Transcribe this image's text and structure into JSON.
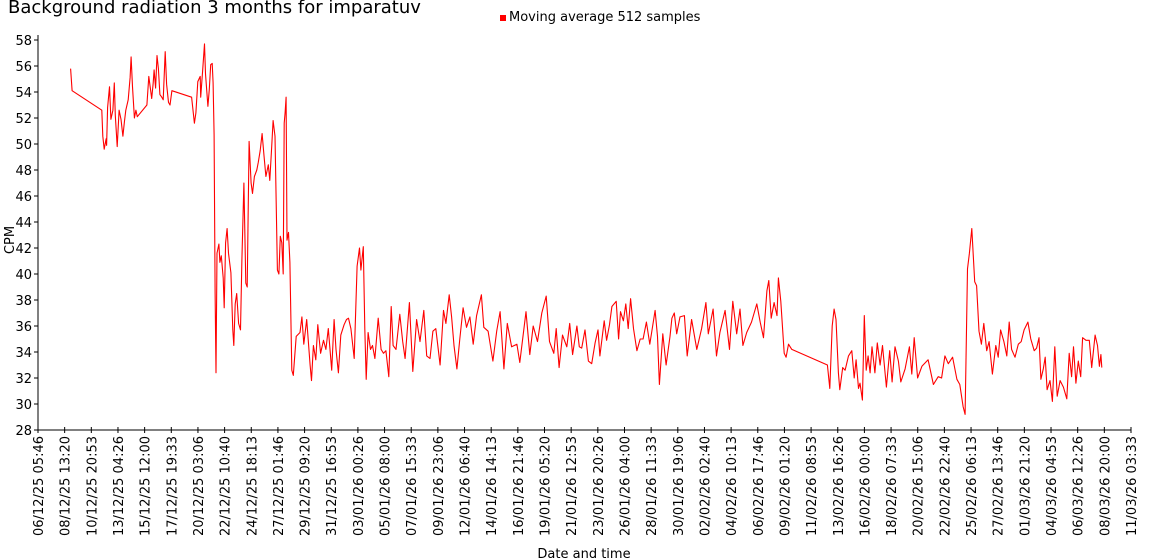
{
  "chart_data": {
    "type": "line",
    "title": "Background radiation 3 months for imparatuv",
    "xlabel": "Date and time",
    "ylabel": "CPM",
    "ylim": [
      28,
      58
    ],
    "y_ticks": [
      28,
      30,
      32,
      34,
      36,
      38,
      40,
      42,
      44,
      46,
      48,
      50,
      52,
      54,
      56,
      58
    ],
    "x_unit": "hours since 06/12/25 05:46",
    "xlim": [
      0,
      2277.8
    ],
    "x_tick_interval_hours": 55.556,
    "x_tick_labels": [
      "06/12/25 05:46",
      "08/12/25 13:20",
      "10/12/25 20:53",
      "13/12/25 04:26",
      "15/12/25 12:00",
      "17/12/25 19:33",
      "20/12/25 03:06",
      "22/12/25 10:40",
      "24/12/25 18:13",
      "27/12/25 01:46",
      "29/12/25 09:20",
      "31/12/25 16:53",
      "03/01/26 00:26",
      "05/01/26 08:00",
      "07/01/26 15:33",
      "09/01/26 23:06",
      "12/01/26 06:40",
      "14/01/26 14:13",
      "16/01/26 21:46",
      "19/01/26 05:20",
      "21/01/26 12:53",
      "23/01/26 20:26",
      "26/01/26 04:00",
      "28/01/26 11:33",
      "30/01/26 19:06",
      "02/02/26 02:40",
      "04/02/26 10:13",
      "06/02/26 17:46",
      "09/02/26 01:20",
      "11/02/26 08:53",
      "13/02/26 16:26",
      "16/02/26 00:00",
      "18/02/26 07:33",
      "20/02/26 15:06",
      "22/02/26 22:40",
      "25/02/26 06:13",
      "27/02/26 13:46",
      "01/03/26 21:20",
      "04/03/26 04:53",
      "06/03/26 12:26",
      "08/03/26 20:00",
      "11/03/26 03:33"
    ],
    "legend": {
      "position": "top-center",
      "entries": [
        "Moving average 512 samples"
      ]
    },
    "series": [
      {
        "name": "Moving average 512 samples",
        "color": "#ff0000",
        "x": [
          68,
          71,
          133,
          135,
          138,
          142,
          143,
          145,
          149,
          152,
          156,
          159,
          161,
          165,
          169,
          173,
          177,
          180,
          183,
          188,
          192,
          194,
          197,
          201,
          204,
          207,
          227,
          231,
          237,
          240,
          242,
          245,
          248,
          251,
          254,
          258,
          261,
          265,
          268,
          272,
          275,
          279,
          320,
          326,
          329,
          333,
          338,
          339,
          343,
          347,
          349,
          354,
          357,
          360,
          363,
          365,
          367,
          369,
          371,
          373,
          377,
          379,
          382,
          386,
          388,
          391,
          394,
          397,
          402,
          406,
          408,
          411,
          414,
          418,
          422,
          425,
          429,
          433,
          436,
          440,
          444,
          447,
          451,
          456,
          459,
          463,
          467,
          471,
          475,
          480,
          483,
          487,
          490,
          494,
          499,
          502,
          505,
          508,
          511,
          513,
          515,
          517,
          519,
          522,
          525,
          529,
          532,
          538,
          546,
          550,
          554,
          560,
          567,
          570,
          574,
          579,
          583,
          589,
          595,
          600,
          605,
          612,
          617,
          621,
          626,
          631,
          638,
          643,
          647,
          652,
          659,
          665,
          670,
          673,
          678,
          681,
          684,
          688,
          693,
          697,
          702,
          709,
          715,
          720,
          725,
          731,
          736,
          740,
          746,
          754,
          760,
          765,
          774,
          781,
          789,
          796,
          804,
          810,
          817,
          823,
          829,
          838,
          845,
          850,
          857,
          862,
          867,
          873,
          879,
          886,
          893,
          900,
          907,
          914,
          924,
          929,
          938,
          948,
          956,
          963,
          971,
          978,
          987,
          998,
          1004,
          1017,
          1025,
          1032,
          1041,
          1050,
          1059,
          1066,
          1075,
          1080,
          1086,
          1093,
          1102,
          1108,
          1114,
          1123,
          1128,
          1133,
          1140,
          1147,
          1154,
          1161,
          1167,
          1171,
          1180,
          1185,
          1191,
          1196,
          1205,
          1210,
          1214,
          1220,
          1225,
          1230,
          1235,
          1241,
          1248,
          1255,
          1261,
          1268,
          1275,
          1286,
          1291,
          1295,
          1302,
          1309,
          1317,
          1321,
          1326,
          1331,
          1338,
          1347,
          1353,
          1362,
          1373,
          1383,
          1392,
          1397,
          1407,
          1414,
          1421,
          1432,
          1441,
          1448,
          1456,
          1463,
          1469,
          1477,
          1487,
          1498,
          1505,
          1512,
          1519,
          1523,
          1528,
          1534,
          1540,
          1543,
          1548,
          1555,
          1559,
          1564,
          1571,
          1645,
          1650,
          1655,
          1659,
          1663,
          1668,
          1671,
          1677,
          1682,
          1689,
          1696,
          1701,
          1705,
          1710,
          1713,
          1718,
          1722,
          1726,
          1730,
          1734,
          1738,
          1744,
          1749,
          1755,
          1760,
          1768,
          1775,
          1780,
          1786,
          1793,
          1798,
          1807,
          1816,
          1821,
          1826,
          1833,
          1842,
          1855,
          1866,
          1876,
          1883,
          1890,
          1897,
          1906,
          1915,
          1921,
          1928,
          1932,
          1937,
          1941,
          1946,
          1952,
          1956,
          1961,
          1966,
          1971,
          1977,
          1982,
          1989,
          1996,
          2001,
          2006,
          2013,
          2019,
          2024,
          2029,
          2036,
          2043,
          2049,
          2055,
          2063,
          2069,
          2076,
          2081,
          2086,
          2090,
          2095,
          2099,
          2103,
          2109,
          2114,
          2119,
          2124,
          2130,
          2137,
          2144,
          2149,
          2154,
          2158,
          2163,
          2168,
          2173,
          2177,
          2184,
          2191,
          2196,
          2203,
          2208,
          2212,
          2215,
          2217
        ],
        "y": [
          55.8,
          54.1,
          52.6,
          50.6,
          49.6,
          50.4,
          49.9,
          52.8,
          54.4,
          51.9,
          52.6,
          54.7,
          52.2,
          49.8,
          52.6,
          51.9,
          50.6,
          51.7,
          52.6,
          53.4,
          55.1,
          56.7,
          54.4,
          52.0,
          52.6,
          52.1,
          53.0,
          55.2,
          53.5,
          54.7,
          55.7,
          54.3,
          56.8,
          55.8,
          53.8,
          53.6,
          53.4,
          57.1,
          54.6,
          53.2,
          53.0,
          54.1,
          53.6,
          51.6,
          52.4,
          54.8,
          55.2,
          53.6,
          55.6,
          57.7,
          55.4,
          52.9,
          54.2,
          56.1,
          56.2,
          54.7,
          50.7,
          38.6,
          32.4,
          41.6,
          42.3,
          40.9,
          41.4,
          39.7,
          37.4,
          42.4,
          43.5,
          41.6,
          40.1,
          35.7,
          34.5,
          37.7,
          38.5,
          36.2,
          35.7,
          41.1,
          47.0,
          39.3,
          39.0,
          50.2,
          47.0,
          46.2,
          47.5,
          48.0,
          48.6,
          49.5,
          50.8,
          49.1,
          47.5,
          48.4,
          47.2,
          49.8,
          51.8,
          50.6,
          40.3,
          40.0,
          42.9,
          42.4,
          40.0,
          51.6,
          52.4,
          53.6,
          42.6,
          43.2,
          40.9,
          32.6,
          32.2,
          35.2,
          35.5,
          36.7,
          34.6,
          36.5,
          33.0,
          31.8,
          34.5,
          33.4,
          36.1,
          33.9,
          34.9,
          34.2,
          35.8,
          32.6,
          36.5,
          34.2,
          32.4,
          35.3,
          36.1,
          36.5,
          36.6,
          35.8,
          33.5,
          40.6,
          42.0,
          40.3,
          42.1,
          35.8,
          31.9,
          35.5,
          34.2,
          34.5,
          33.5,
          36.6,
          34.2,
          33.9,
          34.1,
          32.1,
          37.5,
          34.5,
          34.2,
          36.9,
          34.8,
          33.5,
          37.8,
          32.5,
          36.5,
          34.8,
          37.2,
          33.7,
          33.5,
          35.6,
          35.8,
          33.0,
          37.2,
          36.2,
          38.4,
          36.7,
          34.5,
          32.7,
          35.0,
          37.4,
          35.9,
          36.7,
          34.6,
          36.8,
          38.4,
          35.9,
          35.6,
          33.3,
          35.6,
          37.1,
          32.7,
          36.2,
          34.4,
          34.6,
          33.2,
          37.1,
          33.8,
          36.0,
          34.8,
          37.0,
          38.3,
          34.8,
          33.9,
          35.8,
          32.8,
          35.3,
          34.4,
          36.2,
          33.8,
          36.0,
          34.4,
          34.3,
          35.7,
          33.3,
          33.1,
          34.7,
          35.7,
          33.7,
          36.4,
          34.9,
          36.1,
          37.5,
          37.9,
          35.0,
          37.1,
          36.4,
          37.7,
          35.8,
          38.1,
          35.8,
          34.1,
          35.0,
          35.0,
          36.3,
          34.6,
          37.2,
          35.2,
          31.5,
          35.4,
          33.0,
          35.2,
          36.6,
          37.0,
          35.4,
          36.7,
          36.8,
          33.7,
          36.5,
          34.2,
          35.8,
          37.8,
          35.4,
          37.3,
          33.7,
          35.5,
          37.2,
          34.2,
          37.9,
          35.4,
          37.3,
          34.5,
          35.5,
          36.3,
          37.7,
          36.3,
          35.1,
          38.7,
          39.5,
          36.6,
          37.8,
          36.8,
          39.7,
          37.9,
          33.9,
          33.6,
          34.6,
          34.2,
          33.0,
          31.2,
          36.0,
          37.3,
          36.5,
          32.4,
          31.1,
          32.8,
          32.6,
          33.7,
          34.1,
          32.0,
          33.4,
          31.2,
          31.6,
          30.3,
          36.8,
          32.6,
          33.7,
          32.4,
          34.4,
          32.4,
          34.7,
          33.0,
          34.5,
          31.3,
          34.1,
          31.7,
          34.4,
          33.3,
          31.7,
          32.7,
          34.4,
          32.3,
          35.1,
          32.0,
          32.9,
          33.4,
          31.5,
          32.1,
          32.0,
          33.7,
          33.1,
          33.6,
          31.9,
          31.5,
          29.8,
          29.2,
          40.4,
          41.6,
          43.5,
          39.4,
          39.1,
          35.6,
          34.6,
          36.2,
          34.1,
          34.8,
          32.3,
          34.5,
          33.6,
          35.7,
          34.8,
          33.7,
          36.3,
          34.2,
          33.6,
          34.6,
          34.8,
          35.7,
          36.3,
          35.0,
          34.1,
          34.3,
          35.1,
          31.9,
          32.7,
          33.6,
          31.1,
          31.8,
          30.2,
          34.4,
          30.6,
          31.8,
          31.3,
          30.4,
          33.9,
          32.1,
          34.4,
          31.6,
          33.3,
          32.1,
          35.1,
          34.9,
          34.9,
          32.8,
          35.3,
          34.5,
          32.9,
          33.8,
          32.8
        ]
      }
    ]
  }
}
